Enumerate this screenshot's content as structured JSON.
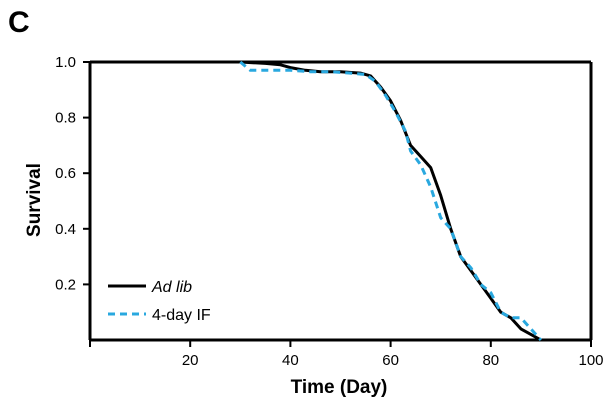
{
  "panel_label": "C",
  "chart_data": {
    "type": "line",
    "title": "",
    "xlabel": "Time (Day)",
    "ylabel": "Survival",
    "xlim": [
      0,
      100
    ],
    "ylim": [
      0,
      1.0
    ],
    "xticks": [
      20,
      40,
      60,
      80,
      100
    ],
    "xtick_labels": [
      "20",
      "40",
      "60",
      "80",
      "100"
    ],
    "yticks": [
      0.2,
      0.4,
      0.6,
      0.8,
      1.0
    ],
    "ytick_labels": [
      "0.2",
      "0.4",
      "0.6",
      "0.8",
      "1.0"
    ],
    "legend_position": "bottom-left",
    "grid": false,
    "series": [
      {
        "name": "Ad lib",
        "italic": true,
        "color": "#000000",
        "dash": "solid",
        "x": [
          30,
          35,
          38,
          40,
          43,
          46,
          50,
          54,
          56,
          58,
          60,
          62,
          64,
          66,
          68,
          70,
          72,
          74,
          76,
          78,
          80,
          82,
          84,
          86,
          88,
          90
        ],
        "y": [
          1.0,
          0.995,
          0.99,
          0.98,
          0.97,
          0.965,
          0.965,
          0.96,
          0.95,
          0.91,
          0.86,
          0.79,
          0.7,
          0.66,
          0.62,
          0.52,
          0.4,
          0.3,
          0.25,
          0.2,
          0.15,
          0.1,
          0.08,
          0.04,
          0.02,
          0.0
        ]
      },
      {
        "name": "4-day IF",
        "italic": false,
        "color": "#29a8df",
        "dash": "dashed",
        "x": [
          30,
          32,
          36,
          40,
          44,
          48,
          52,
          55,
          57,
          59,
          61,
          63,
          64,
          66,
          68,
          70,
          72,
          74,
          76,
          78,
          80,
          82,
          84,
          86,
          88,
          90
        ],
        "y": [
          1.0,
          0.97,
          0.97,
          0.97,
          0.965,
          0.965,
          0.96,
          0.955,
          0.93,
          0.88,
          0.82,
          0.75,
          0.68,
          0.63,
          0.55,
          0.44,
          0.4,
          0.3,
          0.26,
          0.2,
          0.17,
          0.1,
          0.08,
          0.08,
          0.04,
          0.0
        ]
      }
    ]
  }
}
